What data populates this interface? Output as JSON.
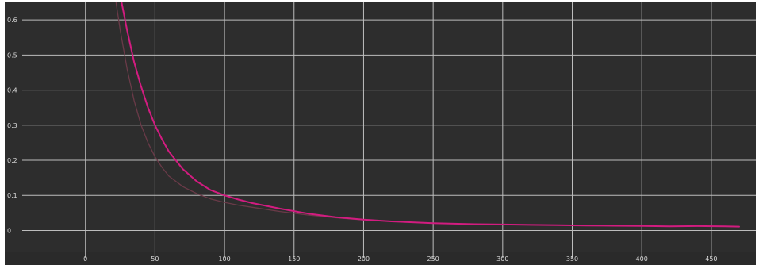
{
  "chart_data": {
    "type": "line",
    "title": "",
    "xlabel": "",
    "ylabel": "",
    "grid": true,
    "xlim": [
      -58,
      482
    ],
    "ylim": [
      -0.06,
      0.65
    ],
    "x_ticks": [
      0,
      50,
      100,
      150,
      200,
      250,
      300,
      350,
      400,
      450
    ],
    "y_ticks": [
      0,
      0.1,
      0.2,
      0.3,
      0.4,
      0.5,
      0.6
    ],
    "x_tick_labels": [
      "0",
      "50",
      "100",
      "150",
      "200",
      "250",
      "300",
      "350",
      "400",
      "450"
    ],
    "y_tick_labels": [
      "0",
      "0.1",
      "0.2",
      "0.3",
      "0.4",
      "0.5",
      "0.6"
    ],
    "series": [
      {
        "color": "#d21c80",
        "x": [
          26,
          30,
          35,
          40,
          45,
          50,
          55,
          60,
          70,
          80,
          90,
          100,
          110,
          120,
          140,
          160,
          180,
          200,
          220,
          250,
          280,
          300,
          320,
          340,
          360,
          380,
          400,
          420,
          440,
          460,
          470
        ],
        "y": [
          0.65,
          0.57,
          0.48,
          0.41,
          0.35,
          0.3,
          0.26,
          0.225,
          0.175,
          0.14,
          0.115,
          0.1,
          0.088,
          0.078,
          0.062,
          0.048,
          0.038,
          0.031,
          0.026,
          0.021,
          0.018,
          0.017,
          0.016,
          0.015,
          0.014,
          0.0135,
          0.013,
          0.012,
          0.0125,
          0.012,
          0.011
        ]
      },
      {
        "color": "#6a3a48",
        "x": [
          22,
          25,
          30,
          35,
          40,
          45,
          50,
          55,
          60,
          70,
          80,
          90,
          100,
          110,
          120,
          140,
          160,
          180,
          200
        ],
        "y": [
          0.65,
          0.57,
          0.46,
          0.37,
          0.3,
          0.25,
          0.21,
          0.18,
          0.155,
          0.125,
          0.105,
          0.09,
          0.08,
          0.072,
          0.066,
          0.054,
          0.044,
          0.036,
          0.03
        ]
      }
    ]
  }
}
